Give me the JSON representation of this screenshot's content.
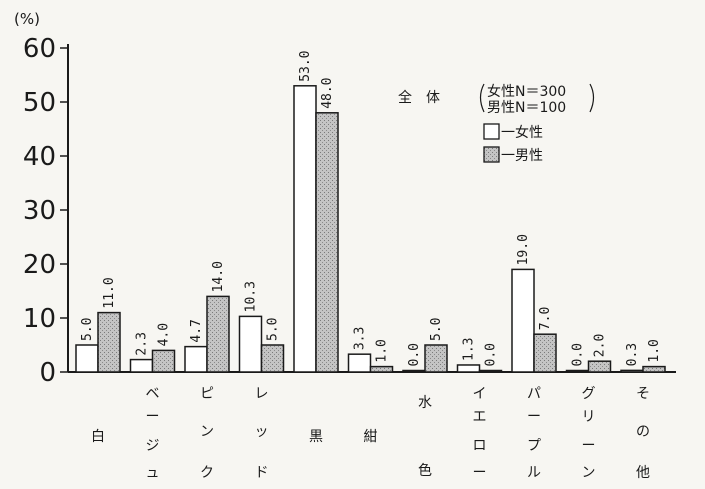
{
  "chart_data": {
    "type": "bar",
    "ylabel": "(%)",
    "ylim": [
      0,
      60
    ],
    "yticks": [
      "0",
      "10",
      "20",
      "30",
      "40",
      "50",
      "60"
    ],
    "categories": [
      "白",
      "ベージュ",
      "ピンク",
      "レッド",
      "黒",
      "紺",
      "水色",
      "イエロー",
      "パープル",
      "グリーン",
      "その他"
    ],
    "series": [
      {
        "name": "女性",
        "values": [
          5.0,
          2.3,
          4.7,
          10.3,
          53.0,
          3.3,
          0.0,
          1.3,
          19.0,
          0.0,
          0.3
        ]
      },
      {
        "name": "男性",
        "values": [
          11.0,
          4.0,
          14.0,
          5.0,
          48.0,
          1.0,
          5.0,
          0.0,
          7.0,
          2.0,
          1.0
        ]
      }
    ],
    "legend": {
      "title": "全　体",
      "n_female": "女性N＝300",
      "n_male": "男性N＝100",
      "female_item": "一女性",
      "male_item": "一男性",
      "position": "top-right"
    },
    "colors": {
      "female_fill": "#ffffff",
      "male_fill": "#b9b9b9",
      "stroke": "#1a1a1a"
    }
  }
}
